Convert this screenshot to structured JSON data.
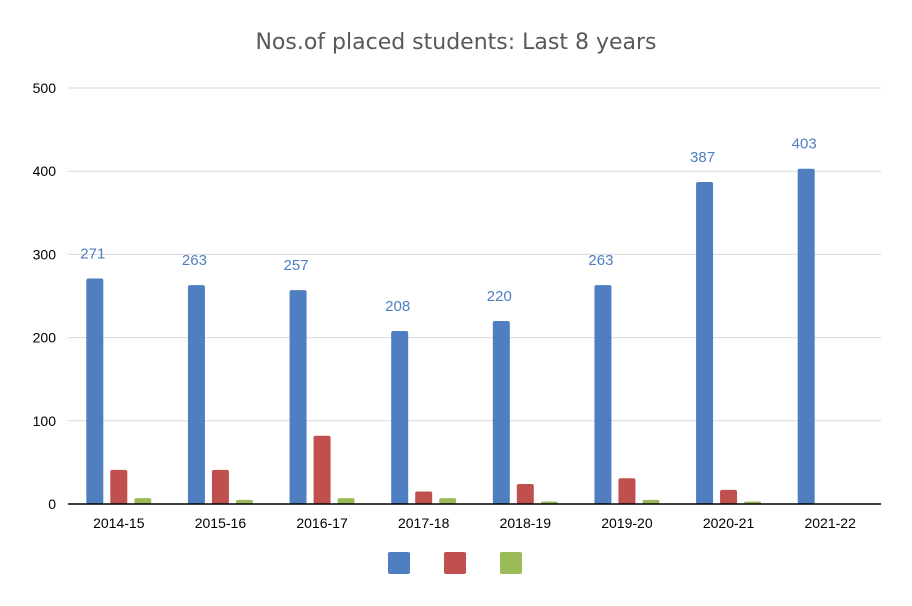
{
  "chart_data": {
    "type": "bar",
    "title": "Nos.of placed students: Last 8 years",
    "categories": [
      "2014-15",
      "2015-16",
      "2016-17",
      "2017-18",
      "2018-19",
      "2019-20",
      "2020-21",
      "2021-22"
    ],
    "series": [
      {
        "color": "#4F7EC1",
        "values": [
          271,
          263,
          257,
          208,
          220,
          263,
          387,
          403
        ],
        "data_labels": [
          "271",
          "263",
          "257",
          "208",
          "220",
          "263",
          "387",
          "403"
        ]
      },
      {
        "color": "#C0504D",
        "values": [
          41,
          41,
          82,
          15,
          24,
          31,
          17,
          0
        ]
      },
      {
        "color": "#9BBB59",
        "values": [
          7,
          5,
          7,
          7,
          3,
          5,
          3,
          0
        ]
      }
    ],
    "ylim": [
      0,
      500
    ],
    "yticks": [
      "0",
      "100",
      "200",
      "300",
      "400",
      "500"
    ],
    "grid": true,
    "legend_position": "bottom",
    "data_label_color": "#4F7EC1"
  }
}
